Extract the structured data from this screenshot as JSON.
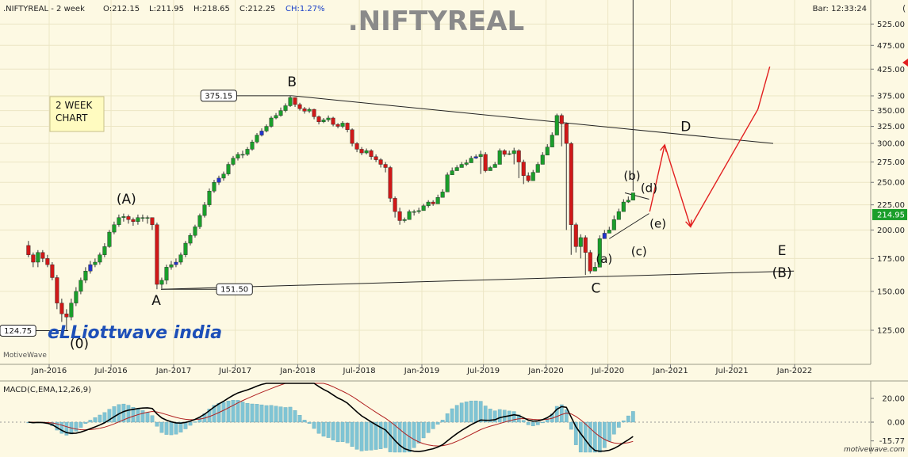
{
  "header": {
    "symbol": ".NIFTYREAL - 2 week",
    "open": "O:212.15",
    "low": "L:211.95",
    "high": "H:218.65",
    "close": "C:212.25",
    "change": "CH:1.27%",
    "bar_time": "Bar: 12:33:24"
  },
  "watermark_title": ".NIFTYREAL",
  "note_box": {
    "line1": "2 WEEK",
    "line2": "CHART"
  },
  "logo": {
    "brand": "eLLiottwave india",
    "platform": "MotiveWave"
  },
  "footer_brand": "motivewave.com",
  "price_panel": {
    "y_ticks": [
      125,
      150,
      175,
      200,
      225,
      250,
      275,
      300,
      325,
      350,
      375,
      425,
      475,
      525
    ],
    "y_tick_labels": [
      "125.00",
      "150.00",
      "175.00",
      "200.00",
      "225.00",
      "250.00",
      "275.00",
      "300.00",
      "325.00",
      "350.00",
      "375.00",
      "425.00",
      "475.00",
      "525.00"
    ],
    "current_price_label": "214.95",
    "x_labels": [
      "Jan-2016",
      "Jul-2016",
      "Jan-2017",
      "Jul-2017",
      "Jan-2018",
      "Jul-2018",
      "Jan-2019",
      "Jul-2019",
      "Jan-2020",
      "Jul-2020",
      "Jan-2021",
      "Jul-2021",
      "Jan-2022"
    ],
    "callouts": [
      {
        "label": "375.15",
        "date": "2017-12-15",
        "price": 375.15
      },
      {
        "label": "151.50",
        "date": "2016-11-25",
        "price": 151.5
      },
      {
        "label": "124.75",
        "date": "2016-02-26",
        "price": 124.75
      }
    ],
    "wave_labels": [
      {
        "text": "(0)",
        "date": "2016-02-26",
        "price": 124.75
      },
      {
        "text": "(A)",
        "date": "2016-08-15",
        "price": 215
      },
      {
        "text": "A",
        "date": "2016-11-25",
        "price": 151.5
      },
      {
        "text": "B",
        "date": "2017-12-15",
        "price": 375.15
      },
      {
        "text": "C",
        "date": "2020-05-22",
        "price": 163
      },
      {
        "text": "(a)",
        "date": "2020-06-20",
        "price": 190
      },
      {
        "text": "(b)",
        "date": "2020-09-10",
        "price": 240
      },
      {
        "text": "(c)",
        "date": "2020-10-05",
        "price": 200
      },
      {
        "text": "(d)",
        "date": "2020-10-30",
        "price": 237
      },
      {
        "text": "(e)",
        "date": "2020-11-25",
        "price": 216
      },
      {
        "text": "D",
        "date": "2021-02-15",
        "price": 318
      },
      {
        "text": "E",
        "date": "2021-11-25",
        "price": 178
      },
      {
        "text": "(B)",
        "date": "2021-11-25",
        "price": 165
      }
    ],
    "trendlines": [
      {
        "name": "upper",
        "from": {
          "date": "2017-12-15",
          "price": 375.15
        },
        "to": {
          "date": "2021-10-30",
          "price": 300
        }
      },
      {
        "name": "lower",
        "from": {
          "date": "2016-11-25",
          "price": 151.5
        },
        "to": {
          "date": "2021-12-30",
          "price": 165
        }
      },
      {
        "name": "triangle-top",
        "from": {
          "date": "2020-08-20",
          "price": 238
        },
        "to": {
          "date": "2020-10-30",
          "price": 231
        }
      },
      {
        "name": "triangle-bottom",
        "from": {
          "date": "2020-07-05",
          "price": 192
        },
        "to": {
          "date": "2020-10-30",
          "price": 216
        }
      }
    ],
    "projection": [
      {
        "date": "2020-11-01",
        "price": 218
      },
      {
        "date": "2020-12-15",
        "price": 298
      },
      {
        "date": "2021-03-01",
        "price": 203
      },
      {
        "date": "2021-09-15",
        "price": 352
      },
      {
        "date": "2021-10-20",
        "price": 430
      }
    ]
  },
  "macd_panel": {
    "title": "MACD(C,EMA,12,26,9)",
    "y_ticks": [
      -15.77,
      0,
      20
    ],
    "y_tick_labels": [
      "-15.77",
      "0.00",
      "20.00"
    ]
  },
  "colors": {
    "background": "#fdf9e3",
    "up": "#1a9e2a",
    "down": "#d01818",
    "neutral_up": "#2233cc",
    "histogram": "#7fc4d4",
    "macd_line": "#000000",
    "signal_line": "#b02020",
    "projection": "#e21f1f",
    "price_badge": "#1a9e2a"
  },
  "chart_data": {
    "type": "candlestick",
    "title": ".NIFTYREAL",
    "interval": "2 week",
    "ylim": [
      115,
      545
    ],
    "y_scale": "log",
    "grid": true,
    "x": [
      "2015-11-01",
      "2015-11-15",
      "2015-11-29",
      "2015-12-13",
      "2015-12-27",
      "2016-01-10",
      "2016-01-24",
      "2016-02-07",
      "2016-02-21",
      "2016-03-06",
      "2016-03-20",
      "2016-04-03",
      "2016-04-17",
      "2016-05-01",
      "2016-05-15",
      "2016-05-29",
      "2016-06-12",
      "2016-06-26",
      "2016-07-10",
      "2016-07-24",
      "2016-08-07",
      "2016-08-21",
      "2016-09-04",
      "2016-09-18",
      "2016-10-02",
      "2016-10-16",
      "2016-10-30",
      "2016-11-13",
      "2016-11-27",
      "2016-12-11",
      "2016-12-25",
      "2017-01-08",
      "2017-01-22",
      "2017-02-05",
      "2017-02-19",
      "2017-03-05",
      "2017-03-19",
      "2017-04-02",
      "2017-04-16",
      "2017-04-30",
      "2017-05-14",
      "2017-05-28",
      "2017-06-11",
      "2017-06-25",
      "2017-07-09",
      "2017-07-23",
      "2017-08-06",
      "2017-08-20",
      "2017-09-03",
      "2017-09-17",
      "2017-10-01",
      "2017-10-15",
      "2017-10-29",
      "2017-11-12",
      "2017-11-26",
      "2017-12-10",
      "2017-12-24",
      "2018-01-07",
      "2018-01-21",
      "2018-02-04",
      "2018-02-18",
      "2018-03-04",
      "2018-03-18",
      "2018-04-01",
      "2018-04-15",
      "2018-04-29",
      "2018-05-13",
      "2018-05-27",
      "2018-06-10",
      "2018-06-24",
      "2018-07-08",
      "2018-07-22",
      "2018-08-05",
      "2018-08-19",
      "2018-09-02",
      "2018-09-16",
      "2018-09-30",
      "2018-10-14",
      "2018-10-28",
      "2018-11-11",
      "2018-11-25",
      "2018-12-09",
      "2018-12-23",
      "2019-01-06",
      "2019-01-20",
      "2019-02-03",
      "2019-02-17",
      "2019-03-03",
      "2019-03-17",
      "2019-03-31",
      "2019-04-14",
      "2019-04-28",
      "2019-05-12",
      "2019-05-26",
      "2019-06-09",
      "2019-06-23",
      "2019-07-07",
      "2019-07-21",
      "2019-08-04",
      "2019-08-18",
      "2019-09-01",
      "2019-09-15",
      "2019-09-29",
      "2019-10-13",
      "2019-10-27",
      "2019-11-10",
      "2019-11-24",
      "2019-12-08",
      "2019-12-22",
      "2020-01-05",
      "2020-01-19",
      "2020-02-02",
      "2020-02-16",
      "2020-03-01",
      "2020-03-15",
      "2020-03-29",
      "2020-04-12",
      "2020-04-26",
      "2020-05-10",
      "2020-05-24",
      "2020-06-07",
      "2020-06-21",
      "2020-07-05",
      "2020-07-19",
      "2020-08-02",
      "2020-08-16",
      "2020-08-30",
      "2020-09-13"
    ],
    "series": [
      {
        "type": "candlestick",
        "open": [
          186,
          178,
          172,
          180,
          175,
          170,
          160,
          142,
          135,
          133,
          142,
          150,
          158,
          165,
          170,
          172,
          178,
          185,
          198,
          205,
          212,
          213,
          210,
          208,
          212,
          212,
          212,
          205,
          155,
          158,
          168,
          170,
          172,
          178,
          188,
          195,
          203,
          214,
          225,
          240,
          250,
          255,
          260,
          272,
          280,
          285,
          285,
          292,
          302,
          312,
          318,
          325,
          338,
          342,
          350,
          358,
          372,
          360,
          353,
          349,
          352,
          340,
          332,
          335,
          338,
          328,
          325,
          330,
          320,
          300,
          292,
          287,
          290,
          282,
          278,
          272,
          268,
          232,
          218,
          209,
          210,
          218,
          218,
          219,
          224,
          228,
          226,
          233,
          239,
          259,
          264,
          268,
          272,
          274,
          280,
          282,
          285,
          264,
          268,
          272,
          290,
          285,
          286,
          290,
          275,
          258,
          252,
          262,
          272,
          284,
          295,
          312,
          342,
          329,
          300,
          205,
          185,
          193,
          180,
          165,
          168,
          192,
          197,
          200,
          210,
          218,
          228,
          230
        ],
        "close": [
          178,
          172,
          180,
          175,
          170,
          160,
          142,
          135,
          133,
          142,
          150,
          158,
          165,
          170,
          172,
          178,
          185,
          198,
          205,
          212,
          213,
          210,
          208,
          212,
          212,
          212,
          205,
          155,
          158,
          168,
          170,
          172,
          178,
          188,
          195,
          203,
          214,
          225,
          240,
          250,
          255,
          260,
          272,
          280,
          285,
          285,
          292,
          302,
          312,
          318,
          325,
          338,
          342,
          350,
          358,
          372,
          360,
          353,
          349,
          352,
          340,
          332,
          335,
          338,
          328,
          325,
          330,
          320,
          300,
          292,
          287,
          290,
          282,
          278,
          272,
          268,
          232,
          218,
          209,
          210,
          218,
          218,
          219,
          224,
          228,
          226,
          233,
          239,
          259,
          264,
          268,
          272,
          274,
          280,
          282,
          285,
          264,
          268,
          272,
          290,
          285,
          286,
          290,
          275,
          258,
          252,
          262,
          272,
          284,
          295,
          312,
          342,
          329,
          300,
          205,
          185,
          193,
          180,
          165,
          168,
          192,
          197,
          200,
          210,
          218,
          228,
          230,
          238
        ],
        "high": [
          190,
          180,
          182,
          182,
          178,
          172,
          162,
          145,
          138,
          145,
          153,
          160,
          168,
          173,
          175,
          180,
          188,
          200,
          208,
          215,
          216,
          215,
          212,
          215,
          215,
          214,
          212,
          207,
          160,
          170,
          173,
          175,
          180,
          190,
          197,
          205,
          216,
          228,
          243,
          253,
          258,
          263,
          275,
          283,
          288,
          290,
          295,
          305,
          315,
          322,
          328,
          341,
          346,
          355,
          362,
          375,
          372,
          363,
          356,
          355,
          353,
          342,
          338,
          342,
          340,
          330,
          333,
          331,
          322,
          302,
          295,
          293,
          292,
          285,
          280,
          275,
          270,
          234,
          222,
          212,
          220,
          220,
          222,
          226,
          230,
          230,
          236,
          242,
          262,
          268,
          271,
          275,
          278,
          283,
          285,
          290,
          288,
          270,
          275,
          293,
          292,
          290,
          294,
          292,
          278,
          262,
          265,
          275,
          288,
          299,
          316,
          345,
          345,
          331,
          302,
          207,
          196,
          195,
          182,
          172,
          195,
          200,
          203,
          214,
          221,
          231,
          234,
          240
        ],
        "low": [
          176,
          168,
          168,
          172,
          168,
          158,
          138,
          130,
          124.75,
          131,
          140,
          148,
          156,
          163,
          168,
          170,
          176,
          184,
          196,
          203,
          208,
          206,
          204,
          205,
          208,
          206,
          200,
          151.5,
          152,
          155,
          166,
          168,
          170,
          176,
          186,
          193,
          201,
          212,
          223,
          238,
          247,
          252,
          258,
          270,
          277,
          280,
          283,
          290,
          300,
          310,
          316,
          323,
          336,
          340,
          347,
          356,
          356,
          350,
          345,
          346,
          336,
          328,
          330,
          332,
          325,
          322,
          322,
          316,
          296,
          288,
          284,
          285,
          278,
          275,
          268,
          262,
          228,
          212,
          205,
          207,
          214,
          214,
          216,
          220,
          222,
          224,
          230,
          236,
          256,
          261,
          266,
          268,
          270,
          277,
          279,
          260,
          262,
          266,
          270,
          282,
          282,
          284,
          272,
          255,
          248,
          250,
          260,
          270,
          281,
          292,
          308,
          326,
          296,
          200,
          178,
          180,
          175,
          162,
          163,
          165,
          188,
          194,
          197,
          207,
          215,
          225,
          227
        ]
      }
    ]
  }
}
